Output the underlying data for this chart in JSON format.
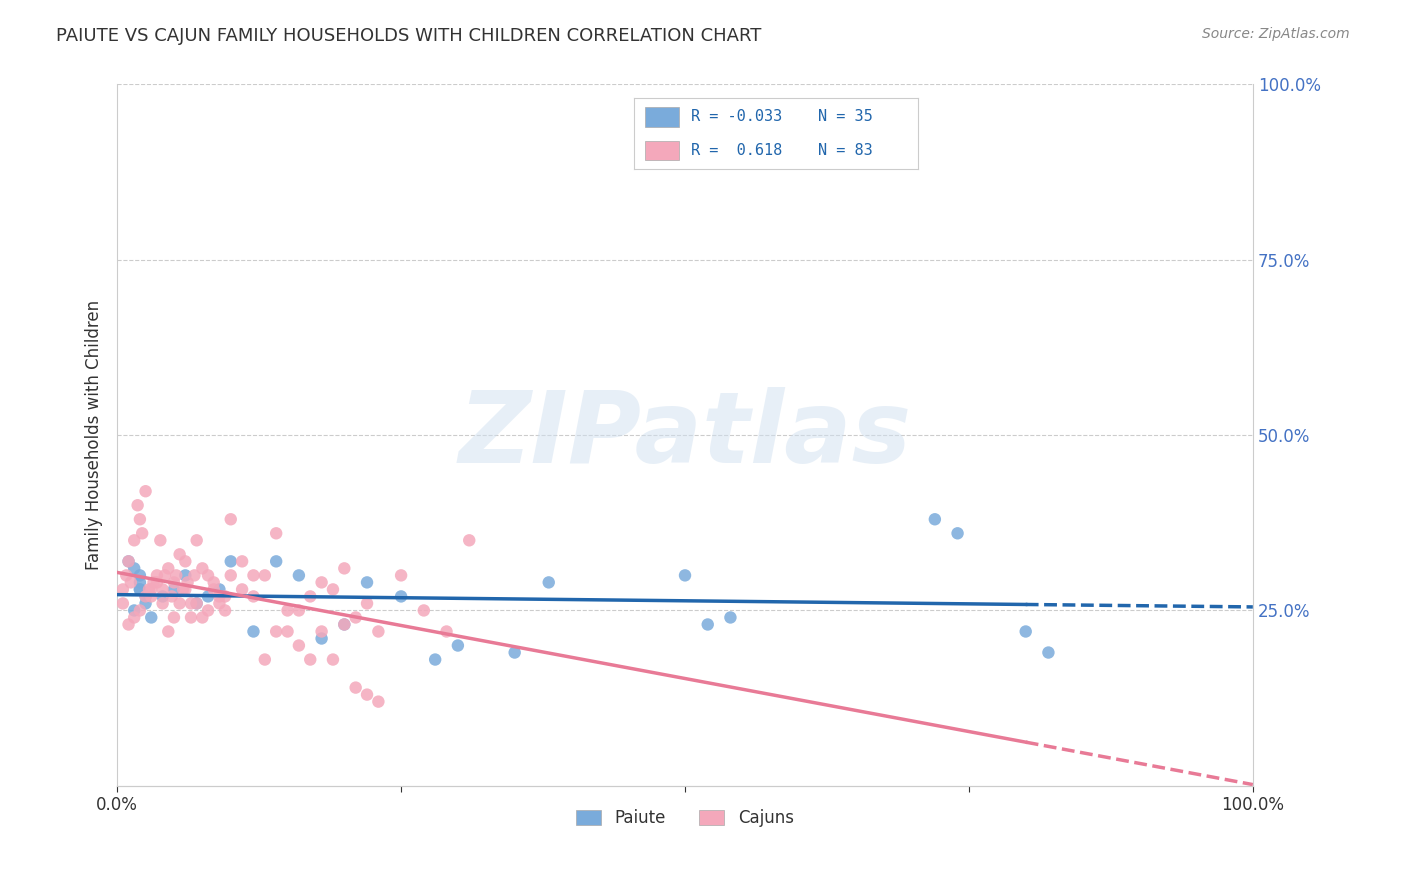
{
  "title": "PAIUTE VS CAJUN FAMILY HOUSEHOLDS WITH CHILDREN CORRELATION CHART",
  "source": "Source: ZipAtlas.com",
  "xlabel": "",
  "ylabel": "Family Households with Children",
  "xlim": [
    0,
    1.0
  ],
  "ylim": [
    0,
    1.0
  ],
  "xticks": [
    0.0,
    0.25,
    0.5,
    0.75,
    1.0
  ],
  "xticklabels": [
    "0.0%",
    "",
    "",
    "",
    "100.0%"
  ],
  "yticks_right": [
    0.25,
    0.5,
    0.75,
    1.0
  ],
  "yticks_right_labels": [
    "25.0%",
    "50.0%",
    "75.0%",
    "100.0%"
  ],
  "paiute_color": "#7aabdb",
  "cajun_color": "#f4a8bb",
  "paiute_line_color": "#2166ac",
  "cajun_line_color": "#e87a96",
  "legend_R_paiute": "-0.033",
  "legend_N_paiute": "35",
  "legend_R_cajun": "0.618",
  "legend_N_cajun": "83",
  "watermark": "ZIPatlas",
  "background_color": "#ffffff",
  "grid_color": "#cccccc",
  "paiute_x": [
    0.02,
    0.02,
    0.015,
    0.025,
    0.01,
    0.02,
    0.025,
    0.03,
    0.015,
    0.02,
    0.04,
    0.05,
    0.06,
    0.07,
    0.08,
    0.09,
    0.1,
    0.12,
    0.14,
    0.16,
    0.18,
    0.2,
    0.22,
    0.25,
    0.28,
    0.3,
    0.35,
    0.38,
    0.5,
    0.52,
    0.54,
    0.72,
    0.74,
    0.8,
    0.82
  ],
  "paiute_y": [
    0.28,
    0.3,
    0.25,
    0.27,
    0.32,
    0.29,
    0.26,
    0.24,
    0.31,
    0.28,
    0.27,
    0.28,
    0.3,
    0.26,
    0.27,
    0.28,
    0.32,
    0.22,
    0.32,
    0.3,
    0.21,
    0.23,
    0.29,
    0.27,
    0.18,
    0.2,
    0.19,
    0.29,
    0.3,
    0.23,
    0.24,
    0.38,
    0.36,
    0.22,
    0.19
  ],
  "cajun_x": [
    0.005,
    0.008,
    0.01,
    0.012,
    0.015,
    0.018,
    0.02,
    0.022,
    0.025,
    0.028,
    0.03,
    0.032,
    0.035,
    0.038,
    0.04,
    0.042,
    0.045,
    0.048,
    0.05,
    0.052,
    0.055,
    0.058,
    0.06,
    0.062,
    0.065,
    0.068,
    0.07,
    0.075,
    0.08,
    0.085,
    0.09,
    0.095,
    0.1,
    0.11,
    0.12,
    0.13,
    0.14,
    0.15,
    0.16,
    0.17,
    0.18,
    0.19,
    0.2,
    0.21,
    0.22,
    0.23,
    0.25,
    0.27,
    0.29,
    0.31,
    0.005,
    0.01,
    0.015,
    0.02,
    0.025,
    0.03,
    0.035,
    0.04,
    0.045,
    0.05,
    0.055,
    0.06,
    0.065,
    0.07,
    0.075,
    0.08,
    0.085,
    0.09,
    0.095,
    0.1,
    0.11,
    0.12,
    0.13,
    0.14,
    0.15,
    0.16,
    0.17,
    0.18,
    0.19,
    0.2,
    0.21,
    0.22,
    0.23
  ],
  "cajun_y": [
    0.28,
    0.3,
    0.32,
    0.29,
    0.35,
    0.4,
    0.38,
    0.36,
    0.42,
    0.28,
    0.27,
    0.29,
    0.3,
    0.35,
    0.28,
    0.3,
    0.31,
    0.27,
    0.29,
    0.3,
    0.33,
    0.28,
    0.32,
    0.29,
    0.26,
    0.3,
    0.35,
    0.31,
    0.25,
    0.28,
    0.26,
    0.27,
    0.38,
    0.32,
    0.3,
    0.3,
    0.36,
    0.25,
    0.25,
    0.27,
    0.29,
    0.28,
    0.31,
    0.24,
    0.26,
    0.22,
    0.3,
    0.25,
    0.22,
    0.35,
    0.26,
    0.23,
    0.24,
    0.25,
    0.27,
    0.28,
    0.29,
    0.26,
    0.22,
    0.24,
    0.26,
    0.28,
    0.24,
    0.26,
    0.24,
    0.3,
    0.29,
    0.27,
    0.25,
    0.3,
    0.28,
    0.27,
    0.18,
    0.22,
    0.22,
    0.2,
    0.18,
    0.22,
    0.18,
    0.23,
    0.14,
    0.13,
    0.12
  ]
}
